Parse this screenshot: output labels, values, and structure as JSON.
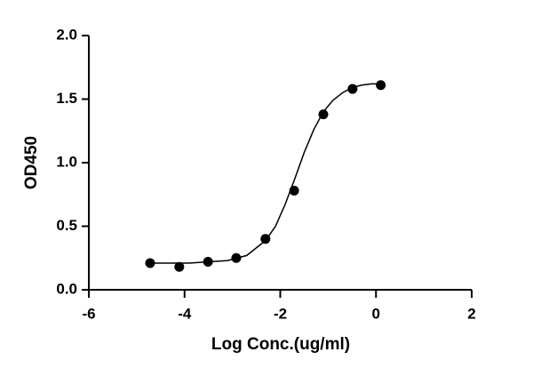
{
  "chart_data": {
    "type": "scatter",
    "x_label": "Log Conc.(ug/ml)",
    "y_label": "OD450",
    "xlim": [
      -6,
      2
    ],
    "xticks": [
      -6,
      -4,
      -2,
      0,
      2
    ],
    "ylim": [
      0,
      2
    ],
    "yticks": [
      {
        "value": 0,
        "label": "0.0"
      },
      0.5,
      {
        "value": 1,
        "label": "1.0"
      },
      1.5,
      {
        "value": 2,
        "label": "2.0"
      }
    ],
    "grid": false,
    "series": [
      {
        "type": "scatter",
        "color": "#000000",
        "x": [
          -4.72,
          -4.11,
          -3.51,
          -2.92,
          -2.31,
          -1.71,
          -1.1,
          -0.49,
          0.1
        ],
        "values": [
          0.21,
          0.18,
          0.22,
          0.25,
          0.4,
          0.78,
          1.38,
          1.58,
          1.61
        ]
      },
      {
        "type": "line",
        "color": "#000000",
        "x": [
          -4.7,
          -4.3,
          -3.9,
          -3.5,
          -3.1,
          -2.7,
          -2.3,
          -2.1,
          -1.9,
          -1.7,
          -1.5,
          -1.3,
          -1.1,
          -0.9,
          -0.7,
          -0.5,
          -0.3,
          -0.1,
          0.1
        ],
        "values": [
          0.21,
          0.21,
          0.21,
          0.22,
          0.23,
          0.27,
          0.39,
          0.5,
          0.67,
          0.87,
          1.08,
          1.26,
          1.4,
          1.49,
          1.55,
          1.59,
          1.61,
          1.62,
          1.62
        ]
      }
    ]
  }
}
